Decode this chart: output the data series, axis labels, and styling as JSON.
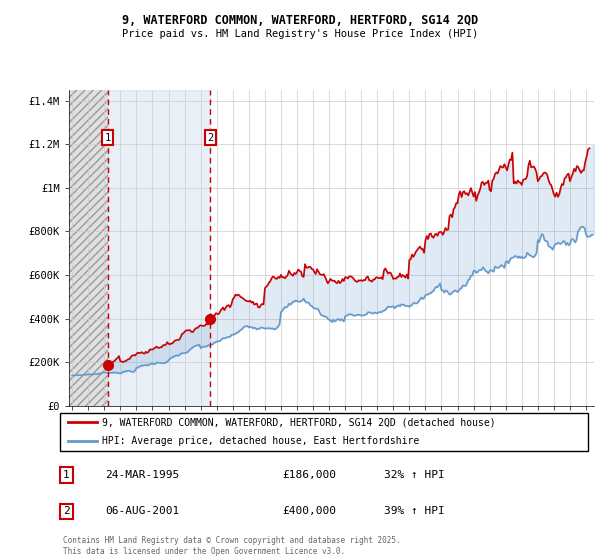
{
  "title1": "9, WATERFORD COMMON, WATERFORD, HERTFORD, SG14 2QD",
  "title2": "Price paid vs. HM Land Registry's House Price Index (HPI)",
  "legend_line1": "9, WATERFORD COMMON, WATERFORD, HERTFORD, SG14 2QD (detached house)",
  "legend_line2": "HPI: Average price, detached house, East Hertfordshire",
  "footnote": "Contains HM Land Registry data © Crown copyright and database right 2025.\nThis data is licensed under the Open Government Licence v3.0.",
  "transaction1_date": "24-MAR-1995",
  "transaction1_price": "£186,000",
  "transaction1_hpi": "32% ↑ HPI",
  "transaction1_year": 1995.2,
  "transaction1_value": 186000,
  "transaction2_date": "06-AUG-2001",
  "transaction2_price": "£400,000",
  "transaction2_hpi": "39% ↑ HPI",
  "transaction2_year": 2001.6,
  "transaction2_value": 400000,
  "color_property": "#cc0000",
  "color_hpi": "#6699cc",
  "ylim_min": 0,
  "ylim_max": 1450000,
  "xlim_min": 1992.8,
  "xlim_max": 2025.5,
  "yticks": [
    0,
    200000,
    400000,
    600000,
    800000,
    1000000,
    1200000,
    1400000
  ],
  "ytick_labels": [
    "£0",
    "£200K",
    "£400K",
    "£600K",
    "£800K",
    "£1M",
    "£1.2M",
    "£1.4M"
  ]
}
